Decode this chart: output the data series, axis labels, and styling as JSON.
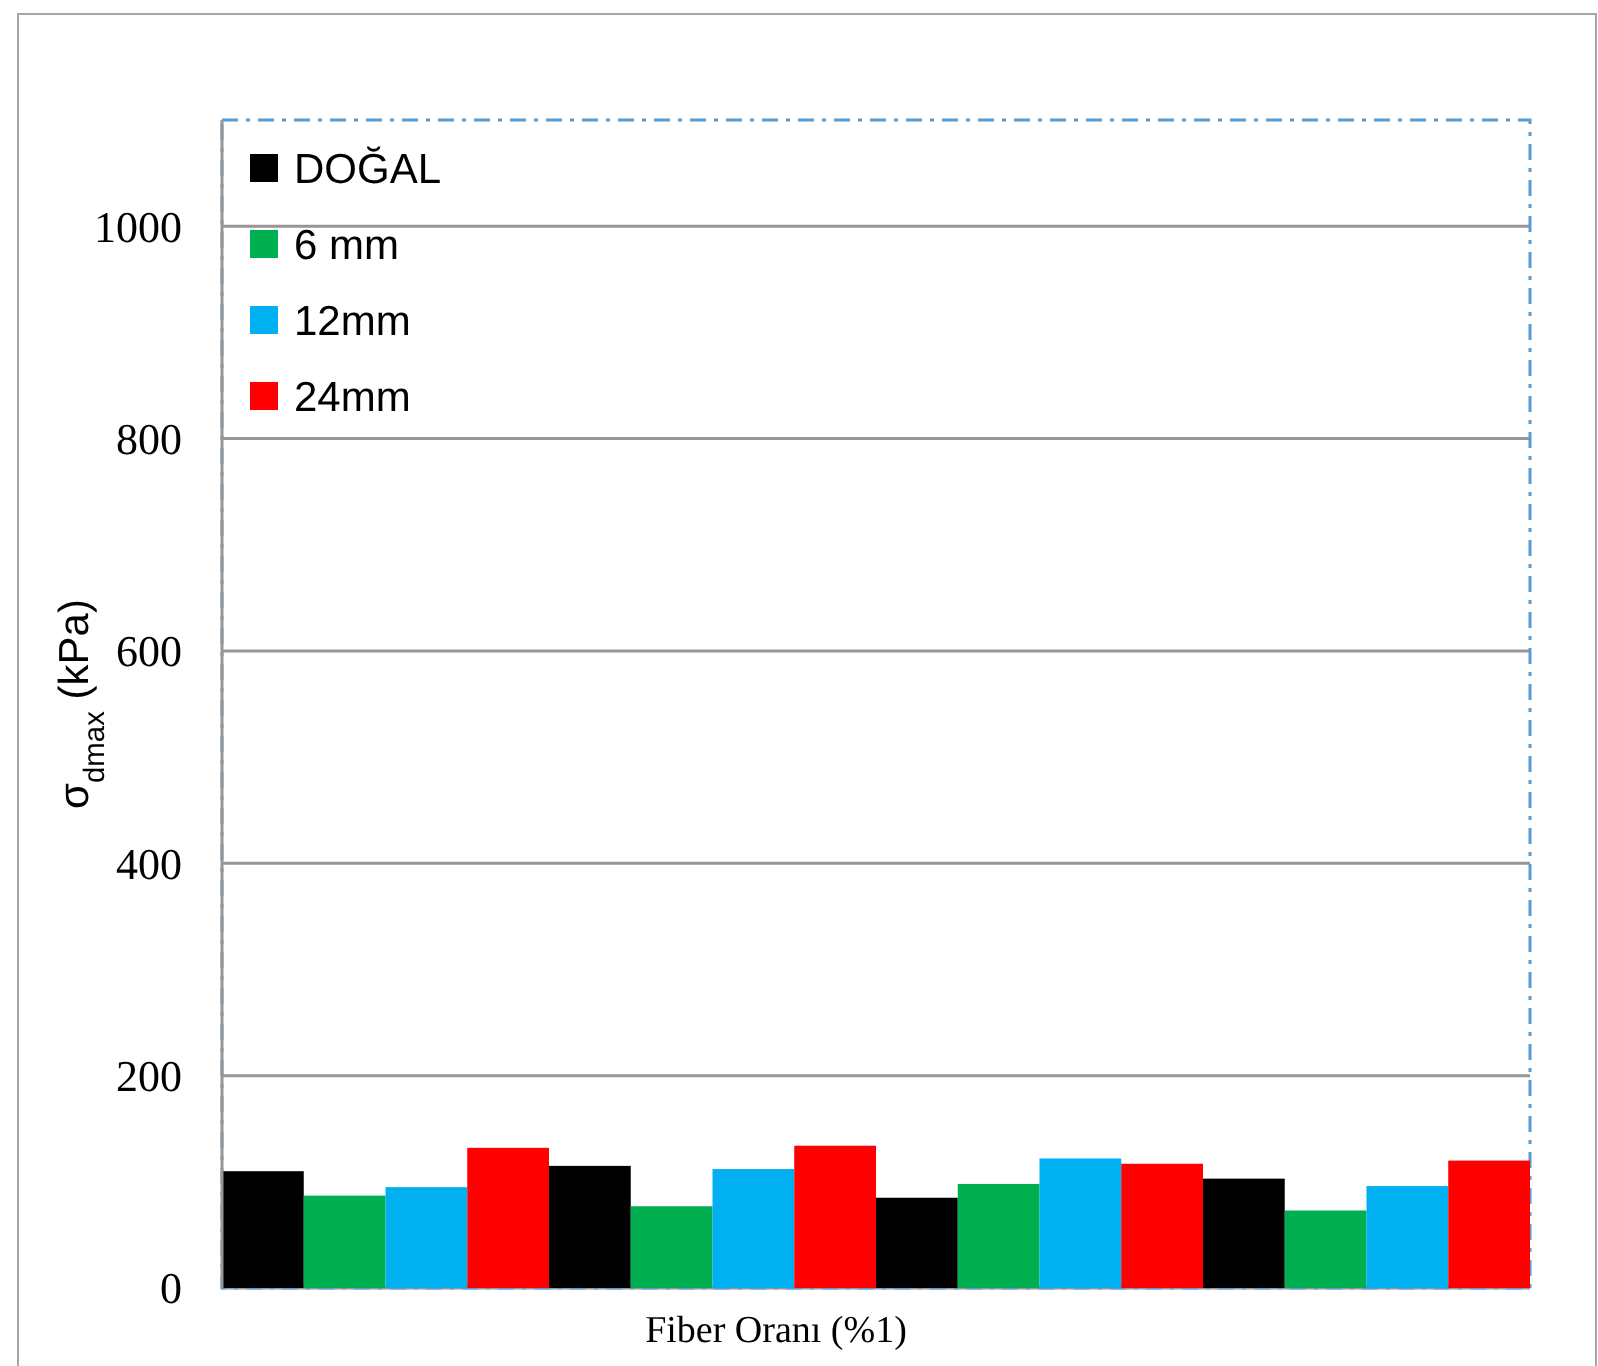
{
  "chart_data": {
    "type": "bar",
    "xlabel": "Fiber Oranı (%1)",
    "ylabel": "σ$_{dmax}$ (kPa)",
    "categories": [
      null,
      null,
      null,
      null
    ],
    "series": [
      {
        "name": "DOĞAL",
        "color": "#000000",
        "values": [
          110,
          115,
          85,
          103
        ]
      },
      {
        "name": "6 mm",
        "color": "#00b050",
        "values": [
          87,
          77,
          98,
          73
        ]
      },
      {
        "name": "12mm",
        "color": "#00b0f0",
        "values": [
          95,
          112,
          122,
          96
        ]
      },
      {
        "name": "24mm",
        "color": "#ff0000",
        "values": [
          132,
          134,
          117,
          120
        ]
      }
    ],
    "ylim": [
      0,
      1100
    ],
    "yticks": [
      0,
      200,
      400,
      600,
      800,
      1000
    ],
    "grid": "y",
    "legend": "top left"
  }
}
